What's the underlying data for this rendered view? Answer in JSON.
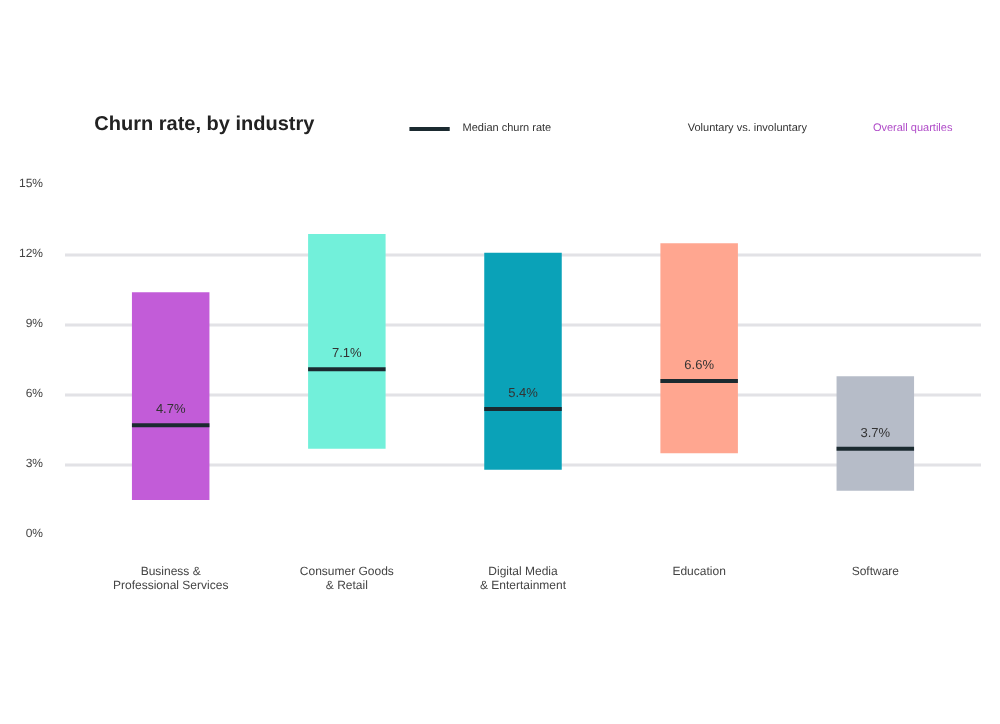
{
  "chart_data": {
    "type": "box",
    "title": "Churn rate, by industry",
    "categories": [
      "Business &\nProfessional Services",
      "Consumer Goods\n& Retail",
      "Digital Media\n& Entertainment",
      "Education",
      "Software"
    ],
    "boxes": [
      {
        "low": 1.5,
        "q1": 1.5,
        "median": 4.7,
        "q3": 10.4,
        "high": 10.4
      },
      {
        "low": 3.7,
        "q1": 3.7,
        "median": 7.1,
        "q3": 12.9,
        "high": 12.9
      },
      {
        "low": 2.8,
        "q1": 2.8,
        "median": 5.4,
        "q3": 12.1,
        "high": 12.1
      },
      {
        "low": 3.5,
        "q1": 3.5,
        "median": 6.6,
        "q3": 12.5,
        "high": 12.5
      },
      {
        "low": 1.9,
        "q1": 1.9,
        "median": 3.7,
        "q3": 6.8,
        "high": 6.8
      }
    ],
    "colors": [
      "#c25cd8",
      "#72f0da",
      "#0aa2b8",
      "#ffa690",
      "#b6bcc8"
    ],
    "data_labels": true,
    "value_labels": [
      "4.7%",
      "7.1%",
      "5.4%",
      "6.6%",
      "3.7%"
    ],
    "ylim": [
      0,
      15
    ],
    "yticks": [
      {
        "value": 0,
        "label": "0%"
      },
      {
        "value": 3,
        "label": "3%"
      },
      {
        "value": 6,
        "label": "6%"
      },
      {
        "value": 9,
        "label": "9%"
      },
      {
        "value": 12,
        "label": "12%"
      },
      {
        "value": 15,
        "label": "15%"
      }
    ],
    "grid": "y",
    "annotations": [
      "Median churn rate",
      "Voluntary vs. involuntary",
      "Overall quartiles"
    ]
  }
}
